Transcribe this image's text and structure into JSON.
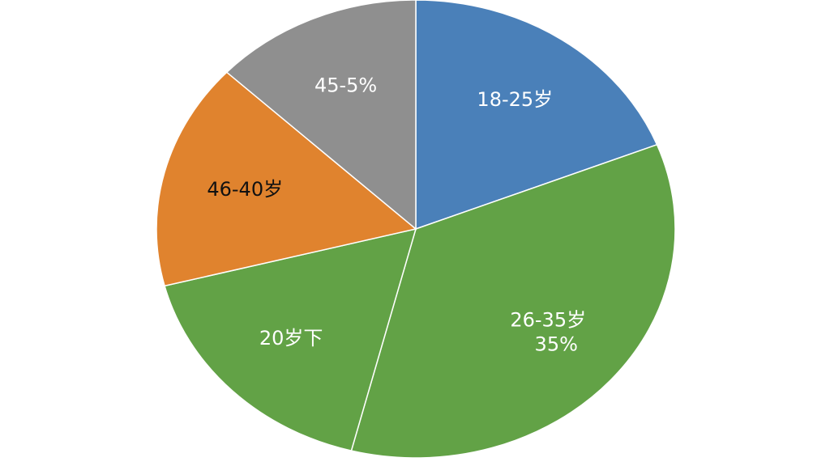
{
  "chart_data": {
    "type": "pie",
    "categories": [
      "18-25岁",
      "26-35岁",
      "20岁下",
      "46-40岁",
      "45-5%"
    ],
    "values": [
      19,
      35,
      17,
      16,
      13
    ],
    "value_labels": [
      null,
      "35%",
      null,
      null,
      null
    ],
    "colors": [
      "#4a80b9",
      "#62a246",
      "#62a246",
      "#e0832e",
      "#8f8f8f"
    ],
    "label_colors": [
      "#ffffff",
      "#ffffff",
      "#ffffff",
      "#111111",
      "#ffffff"
    ]
  }
}
